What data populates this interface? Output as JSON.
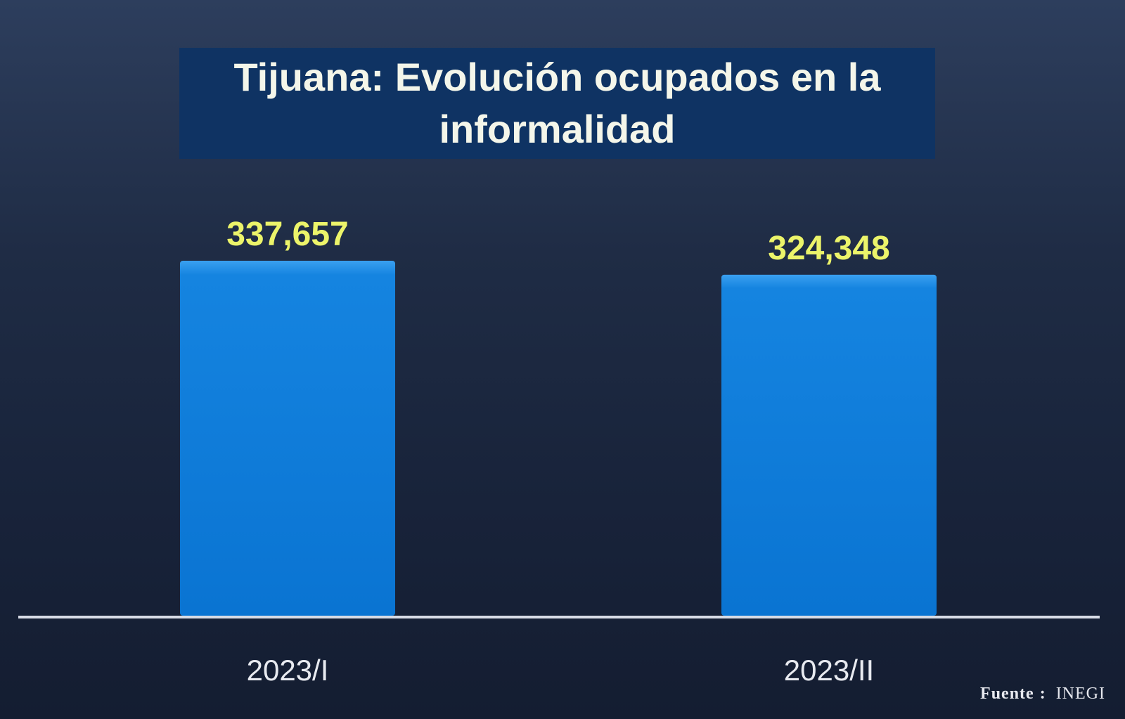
{
  "chart_data": {
    "type": "bar",
    "title": "Tijuana: Evolución ocupados en la informalidad",
    "categories": [
      "2023/I",
      "2023/II"
    ],
    "values": [
      337657,
      324348
    ],
    "data_labels": [
      "337,657",
      "324,348"
    ],
    "xlabel": "",
    "ylabel": "",
    "ylim": [
      0,
      345000
    ],
    "grid": false,
    "legend": "none",
    "colors": {
      "bar": "#0b78d6",
      "bar_highlight": "#3aa0f0",
      "data_label": "#ecf46a",
      "tick_label": "#e8eaf0",
      "axis_line": "#d8dce6",
      "title_background": "#0f3363",
      "title_text": "#f4f6ea"
    }
  },
  "source": {
    "label": "Fuente",
    "separator": ":",
    "org": "INEGI"
  }
}
